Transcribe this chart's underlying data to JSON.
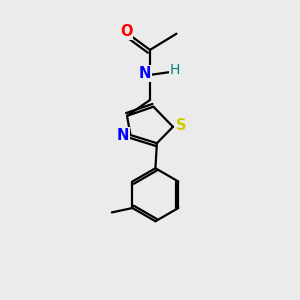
{
  "background_color": "#ebebeb",
  "bond_color": "#000000",
  "atom_colors": {
    "O": "#ff0000",
    "N": "#0000ff",
    "H": "#008080",
    "S": "#cccc00"
  },
  "figsize": [
    3.0,
    3.0
  ],
  "dpi": 100
}
